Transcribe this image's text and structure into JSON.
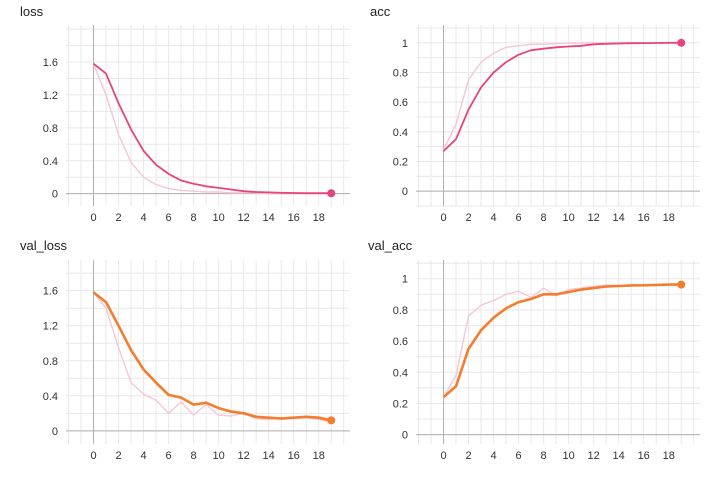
{
  "charts": [
    {
      "title": "loss"
    },
    {
      "title": "acc"
    },
    {
      "title": "val_loss"
    },
    {
      "title": "val_acc"
    }
  ],
  "chart_data": [
    {
      "type": "line",
      "title": "loss",
      "xlim": [
        -2.2,
        20.5
      ],
      "ylim": [
        -0.15,
        2.05
      ],
      "x_ticks": [
        0,
        2,
        4,
        6,
        8,
        10,
        12,
        14,
        16,
        18
      ],
      "y_ticks": [
        0,
        0.4,
        0.8,
        1.2,
        1.6
      ],
      "y_tick_labels": [
        "0",
        "0.4",
        "0.8",
        "1.2",
        "1.6"
      ],
      "grid": true,
      "series": [
        {
          "role": "raw",
          "color": "#f6c6d6",
          "x": [
            0,
            1,
            2,
            3,
            4,
            5,
            6,
            7,
            8,
            9,
            10,
            11,
            12,
            13,
            14,
            15,
            16,
            17,
            18,
            19
          ],
          "y": [
            1.58,
            1.2,
            0.72,
            0.38,
            0.2,
            0.11,
            0.06,
            0.04,
            0.03,
            0.02,
            0.02,
            0.01,
            0.01,
            0.01,
            0.0,
            0.0,
            0.0,
            0.0,
            0.0,
            0.0
          ]
        },
        {
          "role": "smoothed",
          "color": "#e8437e",
          "x": [
            0,
            1,
            2,
            3,
            4,
            5,
            6,
            7,
            8,
            9,
            10,
            11,
            12,
            13,
            14,
            15,
            16,
            17,
            18,
            19
          ],
          "y": [
            1.58,
            1.46,
            1.1,
            0.78,
            0.52,
            0.35,
            0.24,
            0.16,
            0.12,
            0.09,
            0.07,
            0.05,
            0.03,
            0.02,
            0.015,
            0.01,
            0.008,
            0.006,
            0.005,
            0.005
          ]
        }
      ]
    },
    {
      "type": "line",
      "title": "acc",
      "xlim": [
        -2.2,
        20.5
      ],
      "ylim": [
        -0.1,
        1.12
      ],
      "x_ticks": [
        0,
        2,
        4,
        6,
        8,
        10,
        12,
        14,
        16,
        18
      ],
      "y_ticks": [
        0,
        0.2,
        0.4,
        0.6,
        0.8,
        1
      ],
      "y_tick_labels": [
        "0",
        "0.2",
        "0.4",
        "0.6",
        "0.8",
        "1"
      ],
      "grid": true,
      "series": [
        {
          "role": "raw",
          "color": "#f6c6d6",
          "x": [
            0,
            1,
            2,
            3,
            4,
            5,
            6,
            7,
            8,
            9,
            10,
            11,
            12,
            13,
            14,
            15,
            16,
            17,
            18,
            19
          ],
          "y": [
            0.28,
            0.45,
            0.75,
            0.87,
            0.93,
            0.97,
            0.98,
            0.99,
            0.99,
            0.995,
            0.997,
            0.998,
            0.999,
            1.0,
            1.0,
            1.0,
            1.0,
            1.0,
            1.0,
            1.0
          ]
        },
        {
          "role": "smoothed",
          "color": "#e8437e",
          "x": [
            0,
            1,
            2,
            3,
            4,
            5,
            6,
            7,
            8,
            9,
            10,
            11,
            12,
            13,
            14,
            15,
            16,
            17,
            18,
            19
          ],
          "y": [
            0.27,
            0.35,
            0.55,
            0.7,
            0.8,
            0.87,
            0.92,
            0.95,
            0.96,
            0.97,
            0.975,
            0.98,
            0.99,
            0.993,
            0.995,
            0.997,
            0.998,
            0.999,
            1.0,
            1.0
          ]
        }
      ]
    },
    {
      "type": "line",
      "title": "val_loss",
      "xlim": [
        -2.2,
        20.5
      ],
      "ylim": [
        -0.15,
        1.95
      ],
      "x_ticks": [
        0,
        2,
        4,
        6,
        8,
        10,
        12,
        14,
        16,
        18
      ],
      "y_ticks": [
        0,
        0.4,
        0.8,
        1.2,
        1.6
      ],
      "y_tick_labels": [
        "0",
        "0.4",
        "0.8",
        "1.2",
        "1.6"
      ],
      "grid": true,
      "series": [
        {
          "role": "raw",
          "color": "#f6c6d6",
          "x": [
            0,
            1,
            2,
            3,
            4,
            5,
            6,
            7,
            8,
            9,
            10,
            11,
            12,
            13,
            14,
            15,
            16,
            17,
            18,
            19
          ],
          "y": [
            1.58,
            1.4,
            0.95,
            0.55,
            0.42,
            0.35,
            0.2,
            0.33,
            0.18,
            0.3,
            0.18,
            0.17,
            0.2,
            0.14,
            0.13,
            0.15,
            0.14,
            0.15,
            0.13,
            0.1
          ]
        },
        {
          "role": "smoothed",
          "color": "#f47c2c",
          "x": [
            0,
            1,
            2,
            3,
            4,
            5,
            6,
            7,
            8,
            9,
            10,
            11,
            12,
            13,
            14,
            15,
            16,
            17,
            18,
            19
          ],
          "y": [
            1.58,
            1.47,
            1.2,
            0.92,
            0.7,
            0.55,
            0.41,
            0.38,
            0.3,
            0.32,
            0.26,
            0.22,
            0.2,
            0.16,
            0.15,
            0.14,
            0.15,
            0.16,
            0.15,
            0.12
          ]
        }
      ]
    },
    {
      "type": "line",
      "title": "val_acc",
      "xlim": [
        -2.2,
        20.5
      ],
      "ylim": [
        -0.06,
        1.12
      ],
      "x_ticks": [
        0,
        2,
        4,
        6,
        8,
        10,
        12,
        14,
        16,
        18
      ],
      "y_ticks": [
        0,
        0.2,
        0.4,
        0.6,
        0.8,
        1
      ],
      "y_tick_labels": [
        "0",
        "0.2",
        "0.4",
        "0.6",
        "0.8",
        "1"
      ],
      "grid": true,
      "series": [
        {
          "role": "raw",
          "color": "#f6c6d6",
          "x": [
            0,
            1,
            2,
            3,
            4,
            5,
            6,
            7,
            8,
            9,
            10,
            11,
            12,
            13,
            14,
            15,
            16,
            17,
            18,
            19
          ],
          "y": [
            0.24,
            0.38,
            0.76,
            0.83,
            0.86,
            0.9,
            0.92,
            0.88,
            0.94,
            0.89,
            0.93,
            0.94,
            0.95,
            0.96,
            0.955,
            0.96,
            0.96,
            0.955,
            0.965,
            0.96
          ]
        },
        {
          "role": "smoothed",
          "color": "#f47c2c",
          "x": [
            0,
            1,
            2,
            3,
            4,
            5,
            6,
            7,
            8,
            9,
            10,
            11,
            12,
            13,
            14,
            15,
            16,
            17,
            18,
            19
          ],
          "y": [
            0.24,
            0.31,
            0.55,
            0.67,
            0.75,
            0.81,
            0.85,
            0.87,
            0.9,
            0.9,
            0.915,
            0.93,
            0.94,
            0.95,
            0.953,
            0.957,
            0.958,
            0.96,
            0.962,
            0.962
          ]
        }
      ]
    }
  ]
}
